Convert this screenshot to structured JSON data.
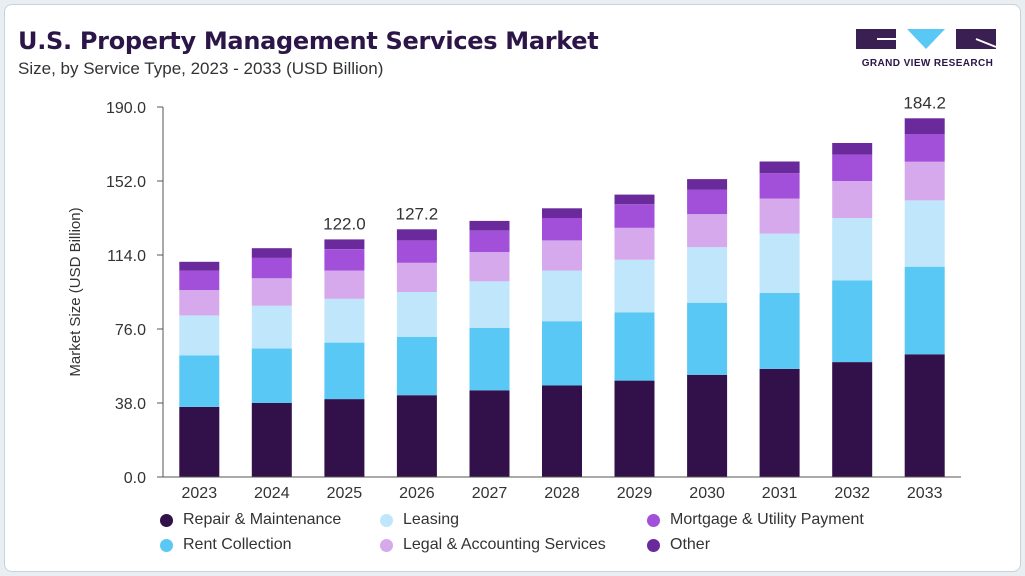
{
  "header": {
    "title": "U.S. Property Management Services Market",
    "subtitle": "Size, by Service Type, 2023 - 2033 (USD Billion)"
  },
  "logo": {
    "text": "GRAND VIEW RESEARCH"
  },
  "colors": {
    "repair": "#32104a",
    "rent": "#5ac8f5",
    "leasing": "#bfe6fa",
    "legal": "#d6a9ec",
    "mortgage": "#a24fd9",
    "other": "#6a2a9c",
    "logo": "#3a1f52"
  },
  "chart_data": {
    "type": "bar",
    "stacked": true,
    "title": "U.S. Property Management Services Market",
    "xlabel": "",
    "ylabel": "Market Size (USD Billion)",
    "ylim": [
      0,
      190
    ],
    "yticks": [
      "0.0",
      "38.0",
      "76.0",
      "114.0",
      "152.0",
      "190.0"
    ],
    "grid": false,
    "categories": [
      "2023",
      "2024",
      "2025",
      "2026",
      "2027",
      "2028",
      "2029",
      "2030",
      "2031",
      "2032",
      "2033"
    ],
    "series": [
      {
        "name": "Repair & Maintenance",
        "color_key": "repair",
        "values": [
          36.0,
          38.0,
          40.0,
          42.0,
          44.5,
          47.0,
          49.5,
          52.5,
          55.5,
          59.0,
          63.0
        ]
      },
      {
        "name": "Rent Collection",
        "color_key": "rent",
        "values": [
          26.5,
          28.0,
          29.0,
          30.0,
          32.0,
          33.0,
          35.0,
          37.0,
          39.0,
          42.0,
          45.0
        ]
      },
      {
        "name": "Leasing",
        "color_key": "leasing",
        "values": [
          20.5,
          22.0,
          22.5,
          23.0,
          24.0,
          26.0,
          27.0,
          28.5,
          30.5,
          32.0,
          34.0
        ]
      },
      {
        "name": "Legal & Accounting Services",
        "color_key": "legal",
        "values": [
          13.0,
          14.0,
          14.5,
          15.0,
          15.0,
          15.5,
          16.5,
          17.0,
          18.0,
          19.0,
          20.0
        ]
      },
      {
        "name": "Mortgage & Utility Payment",
        "color_key": "mortgage",
        "values": [
          10.0,
          10.5,
          11.0,
          11.5,
          11.0,
          11.5,
          12.0,
          12.5,
          13.0,
          13.5,
          14.0
        ]
      },
      {
        "name": "Other",
        "color_key": "other",
        "values": [
          4.5,
          5.0,
          5.0,
          5.7,
          5.0,
          5.0,
          5.0,
          5.5,
          6.0,
          6.0,
          8.2
        ]
      }
    ],
    "annotations": [
      {
        "category": "2025",
        "label": "122.0"
      },
      {
        "category": "2026",
        "label": "127.2"
      },
      {
        "category": "2033",
        "label": "184.2"
      }
    ],
    "legend": {
      "placement": "bottom",
      "rows": [
        [
          "Repair & Maintenance",
          "Leasing",
          "Mortgage & Utility Payment"
        ],
        [
          "Rent Collection",
          "Legal & Accounting Services",
          "Other"
        ]
      ]
    }
  }
}
